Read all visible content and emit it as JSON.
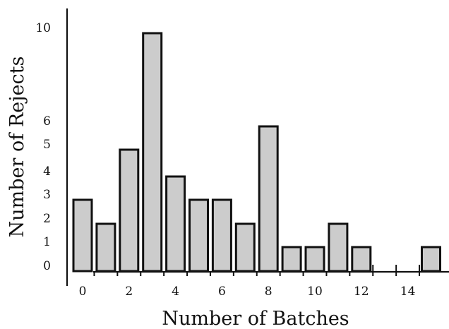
{
  "chart_data": {
    "type": "bar",
    "title": "",
    "xlabel": "Number of Batches",
    "ylabel": "Number of Rejects",
    "x": [
      0,
      1,
      2,
      3,
      4,
      5,
      6,
      7,
      8,
      9,
      10,
      11,
      12,
      13,
      14,
      15
    ],
    "values": [
      3,
      2,
      5,
      10,
      4,
      3,
      3,
      2,
      6,
      1,
      1,
      2,
      1,
      0,
      0,
      1
    ],
    "x_tick_labels": [
      "0",
      "2",
      "4",
      "6",
      "8",
      "10",
      "12",
      "14"
    ],
    "x_tick_values": [
      0,
      2,
      4,
      6,
      8,
      10,
      12,
      14
    ],
    "y_tick_labels": [
      "0",
      "1",
      "2",
      "3",
      "4",
      "5",
      "6",
      "10"
    ],
    "y_tick_values": [
      0,
      1,
      2,
      3,
      4,
      5,
      6,
      10
    ],
    "grid": false,
    "legend": "none",
    "colors": {
      "bar_fill": "#cccccc",
      "bar_stroke": "#111111",
      "axis": "#111111"
    }
  }
}
